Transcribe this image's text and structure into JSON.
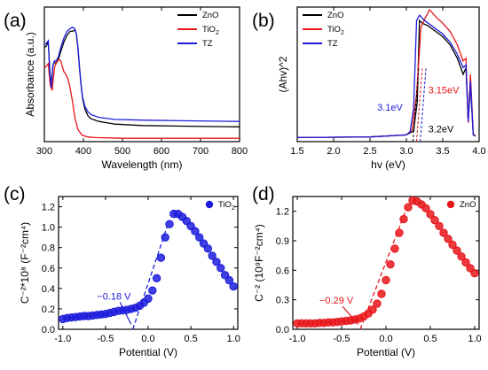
{
  "colors": {
    "ZnO": "#000000",
    "TiO2": "#e8161b",
    "TZ": "#1c1cdc"
  },
  "chart_data": [
    {
      "panel": "(a)",
      "type": "line",
      "xlabel": "Wavelength (nm)",
      "ylabel": "Absorbance (a.u.)",
      "xlim": [
        300,
        800
      ],
      "ylim": [
        0,
        1
      ],
      "xticks": [
        300,
        400,
        500,
        600,
        700,
        800
      ],
      "yticks_shown": false,
      "legend": "top-right",
      "series": [
        {
          "name": "ZnO",
          "label_main": "ZnO",
          "label_sub": "",
          "color": "#000000",
          "x": [
            300,
            305,
            310,
            314,
            318,
            322,
            326,
            330,
            336,
            342,
            350,
            358,
            366,
            372,
            378,
            382,
            386,
            390,
            394,
            398,
            404,
            412,
            420,
            440,
            480,
            550,
            650,
            800
          ],
          "y": [
            0.7,
            0.71,
            0.74,
            0.52,
            0.42,
            0.57,
            0.59,
            0.58,
            0.61,
            0.67,
            0.74,
            0.79,
            0.82,
            0.82,
            0.83,
            0.8,
            0.7,
            0.55,
            0.42,
            0.32,
            0.24,
            0.19,
            0.17,
            0.15,
            0.13,
            0.12,
            0.115,
            0.11
          ]
        },
        {
          "name": "TiO2",
          "label_main": "TiO",
          "label_sub": "2",
          "color": "#e8161b",
          "x": [
            300,
            305,
            310,
            315,
            320,
            326,
            332,
            338,
            342,
            346,
            350,
            355,
            360,
            366,
            372,
            378,
            386,
            396,
            410,
            430,
            500,
            600,
            800
          ],
          "y": [
            0.55,
            0.56,
            0.58,
            0.42,
            0.38,
            0.55,
            0.6,
            0.61,
            0.6,
            0.56,
            0.52,
            0.5,
            0.47,
            0.4,
            0.3,
            0.18,
            0.09,
            0.05,
            0.035,
            0.03,
            0.025,
            0.025,
            0.025
          ]
        },
        {
          "name": "TZ",
          "label_main": "TZ",
          "label_sub": "",
          "color": "#1c1cdc",
          "x": [
            300,
            305,
            310,
            314,
            318,
            322,
            326,
            330,
            336,
            342,
            350,
            358,
            366,
            372,
            378,
            382,
            386,
            390,
            394,
            398,
            404,
            412,
            420,
            440,
            480,
            550,
            650,
            800
          ],
          "y": [
            0.72,
            0.73,
            0.75,
            0.5,
            0.4,
            0.57,
            0.6,
            0.6,
            0.63,
            0.7,
            0.77,
            0.82,
            0.84,
            0.85,
            0.84,
            0.8,
            0.7,
            0.55,
            0.42,
            0.33,
            0.26,
            0.22,
            0.2,
            0.18,
            0.165,
            0.16,
            0.155,
            0.15
          ]
        }
      ]
    },
    {
      "panel": "(b)",
      "type": "line",
      "xlabel": "hv (eV)",
      "ylabel": "(Ahv)^2",
      "xlim": [
        1.5,
        4.0
      ],
      "ylim": [
        0,
        1
      ],
      "xticks": [
        1.5,
        2.0,
        2.5,
        3.0,
        3.5,
        4.0
      ],
      "yticks_shown": false,
      "legend": "top-left",
      "annotations": [
        {
          "text": "3.1eV",
          "x": 2.95,
          "y": 0.23,
          "color": "#1c1cdc"
        },
        {
          "text": "3.15eV",
          "x": 3.3,
          "y": 0.36,
          "color": "#e8161b"
        },
        {
          "text": "3.2eV",
          "x": 3.3,
          "y": 0.07,
          "color": "#000000"
        }
      ],
      "series": [
        {
          "name": "ZnO",
          "label_main": "ZnO",
          "label_sub": "",
          "color": "#000000",
          "x": [
            1.5,
            2.5,
            3.0,
            3.1,
            3.15,
            3.18,
            3.22,
            3.3,
            3.4,
            3.5,
            3.6,
            3.7,
            3.78,
            3.82,
            3.85,
            3.88,
            3.92,
            3.95
          ],
          "y": [
            0.03,
            0.035,
            0.05,
            0.08,
            0.3,
            0.9,
            0.88,
            0.86,
            0.82,
            0.78,
            0.72,
            0.62,
            0.5,
            0.55,
            0.15,
            0.42,
            0.05,
            0.04
          ]
        },
        {
          "name": "TiO2",
          "label_main": "TiO",
          "label_sub": "2",
          "color": "#e8161b",
          "x": [
            1.5,
            2.5,
            3.0,
            3.08,
            3.14,
            3.2,
            3.26,
            3.32,
            3.4,
            3.5,
            3.6,
            3.7,
            3.78,
            3.82,
            3.85,
            3.88,
            3.92,
            3.95
          ],
          "y": [
            0.03,
            0.035,
            0.05,
            0.09,
            0.35,
            0.85,
            0.92,
            0.98,
            0.93,
            0.88,
            0.82,
            0.72,
            0.6,
            0.62,
            0.14,
            0.5,
            0.06,
            0.04
          ]
        },
        {
          "name": "TZ",
          "label_main": "TZ",
          "label_sub": "",
          "color": "#1c1cdc",
          "x": [
            1.5,
            2.5,
            3.0,
            3.05,
            3.1,
            3.14,
            3.18,
            3.25,
            3.3,
            3.4,
            3.5,
            3.6,
            3.7,
            3.78,
            3.82,
            3.85,
            3.88,
            3.92,
            3.95
          ],
          "y": [
            0.03,
            0.035,
            0.05,
            0.07,
            0.25,
            0.9,
            0.94,
            0.9,
            0.88,
            0.84,
            0.8,
            0.74,
            0.65,
            0.55,
            0.57,
            0.15,
            0.45,
            0.05,
            0.04
          ]
        }
      ]
    },
    {
      "panel": "(c)",
      "type": "scatter",
      "xlabel": "Potential (V)",
      "ylabel": "C⁻²*10⁸ (F⁻²cm⁴)",
      "xlim": [
        -1.05,
        1.05
      ],
      "ylim": [
        0,
        1.3
      ],
      "xticks": [
        -1.0,
        -0.5,
        0.0,
        0.5,
        1.0
      ],
      "yticks": [
        0.0,
        0.2,
        0.4,
        0.6,
        0.8,
        1.0,
        1.2
      ],
      "legend": "top-right",
      "annotation": {
        "text": "−0.18 V",
        "x": -0.6,
        "y": 0.29,
        "color": "#1c1cdc"
      },
      "fit_line": {
        "x": [
          -0.18,
          0.22
        ],
        "y": [
          0.0,
          1.0
        ]
      },
      "series": [
        {
          "name": "TiO2",
          "label_main": "TiO",
          "label_sub": "2",
          "color": "#1c1cdc",
          "x": [
            -1.0,
            -0.95,
            -0.9,
            -0.85,
            -0.8,
            -0.75,
            -0.7,
            -0.65,
            -0.6,
            -0.55,
            -0.5,
            -0.45,
            -0.4,
            -0.35,
            -0.3,
            -0.25,
            -0.2,
            -0.15,
            -0.1,
            -0.05,
            0.0,
            0.05,
            0.1,
            0.15,
            0.2,
            0.25,
            0.3,
            0.35,
            0.4,
            0.45,
            0.5,
            0.55,
            0.6,
            0.65,
            0.7,
            0.75,
            0.8,
            0.85,
            0.9,
            0.95,
            1.0
          ],
          "y": [
            0.1,
            0.11,
            0.115,
            0.12,
            0.125,
            0.13,
            0.13,
            0.135,
            0.14,
            0.145,
            0.15,
            0.16,
            0.17,
            0.18,
            0.185,
            0.19,
            0.2,
            0.21,
            0.23,
            0.26,
            0.3,
            0.38,
            0.5,
            0.7,
            0.9,
            1.03,
            1.13,
            1.13,
            1.1,
            1.06,
            1.01,
            0.96,
            0.9,
            0.84,
            0.79,
            0.72,
            0.66,
            0.6,
            0.53,
            0.48,
            0.42
          ]
        }
      ]
    },
    {
      "panel": "(d)",
      "type": "scatter",
      "xlabel": "Potential (V)",
      "ylabel": "C⁻² (10⁹F⁻²cm⁴)",
      "xlim": [
        -1.05,
        1.05
      ],
      "ylim": [
        0,
        1.35
      ],
      "xticks": [
        -1.0,
        -0.5,
        0.0,
        0.5,
        1.0
      ],
      "yticks": [
        0.0,
        0.3,
        0.6,
        0.9,
        1.2
      ],
      "legend": "top-right",
      "annotation": {
        "text": "−0.29 V",
        "x": -0.75,
        "y": 0.26,
        "color": "#e8161b"
      },
      "fit_line": {
        "x": [
          -0.29,
          0.22
        ],
        "y": [
          0.0,
          1.2
        ]
      },
      "series": [
        {
          "name": "ZnO",
          "label_main": "ZnO",
          "label_sub": "",
          "color": "#e8161b",
          "x": [
            -1.0,
            -0.95,
            -0.9,
            -0.85,
            -0.8,
            -0.75,
            -0.7,
            -0.65,
            -0.6,
            -0.55,
            -0.5,
            -0.45,
            -0.4,
            -0.35,
            -0.3,
            -0.25,
            -0.2,
            -0.15,
            -0.1,
            -0.05,
            0.0,
            0.05,
            0.1,
            0.15,
            0.2,
            0.25,
            0.3,
            0.35,
            0.4,
            0.45,
            0.5,
            0.55,
            0.6,
            0.65,
            0.7,
            0.75,
            0.8,
            0.85,
            0.9,
            0.95,
            1.0
          ],
          "y": [
            0.06,
            0.06,
            0.06,
            0.06,
            0.06,
            0.065,
            0.065,
            0.07,
            0.07,
            0.075,
            0.08,
            0.085,
            0.09,
            0.1,
            0.11,
            0.13,
            0.16,
            0.2,
            0.26,
            0.36,
            0.5,
            0.66,
            0.82,
            0.98,
            1.12,
            1.24,
            1.31,
            1.3,
            1.27,
            1.23,
            1.17,
            1.11,
            1.05,
            0.98,
            0.92,
            0.86,
            0.8,
            0.74,
            0.68,
            0.62,
            0.57
          ]
        }
      ]
    }
  ]
}
